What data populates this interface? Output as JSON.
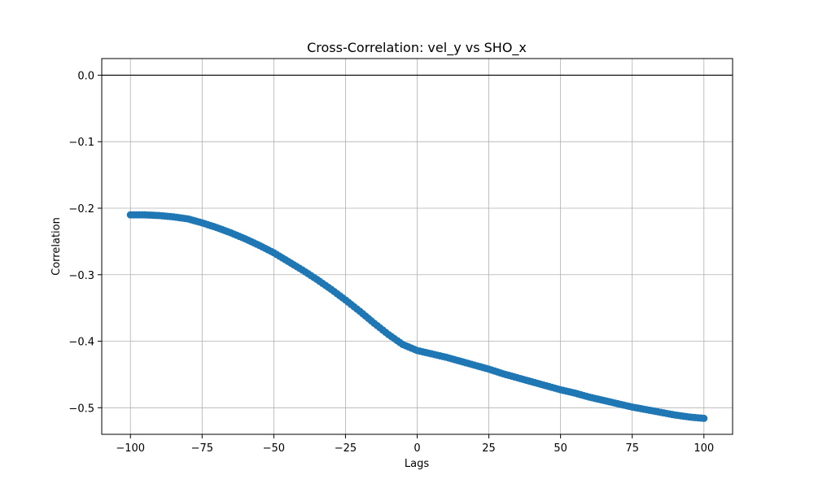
{
  "chart_data": {
    "type": "scatter",
    "title": "Cross-Correlation: vel_y vs SHO_x",
    "xlabel": "Lags",
    "ylabel": "Correlation",
    "xlim": [
      -110,
      110
    ],
    "ylim": [
      -0.54,
      0.025
    ],
    "xticks": [
      -100,
      -75,
      -50,
      -25,
      0,
      25,
      50,
      75,
      100
    ],
    "xtick_labels": [
      "−100",
      "−75",
      "−50",
      "−25",
      "0",
      "25",
      "50",
      "75",
      "100"
    ],
    "yticks": [
      0.0,
      -0.1,
      -0.2,
      -0.3,
      -0.4,
      -0.5
    ],
    "ytick_labels": [
      "0.0",
      "−0.1",
      "−0.2",
      "−0.3",
      "−0.4",
      "−0.5"
    ],
    "grid": true,
    "reference_line": {
      "y": 0.0,
      "color": "#000000"
    },
    "marker_color": "#1f77b4",
    "points": {
      "x": [
        -100,
        -95,
        -90,
        -85,
        -80,
        -75,
        -70,
        -65,
        -60,
        -55,
        -50,
        -45,
        -40,
        -35,
        -30,
        -25,
        -20,
        -15,
        -10,
        -5,
        0,
        5,
        10,
        15,
        20,
        25,
        30,
        35,
        40,
        45,
        50,
        55,
        60,
        65,
        70,
        75,
        80,
        85,
        90,
        95,
        100
      ],
      "y": [
        -0.21,
        -0.21,
        -0.211,
        -0.213,
        -0.216,
        -0.222,
        -0.229,
        -0.237,
        -0.246,
        -0.256,
        -0.267,
        -0.28,
        -0.293,
        -0.307,
        -0.322,
        -0.338,
        -0.355,
        -0.373,
        -0.39,
        -0.405,
        -0.414,
        -0.419,
        -0.424,
        -0.43,
        -0.436,
        -0.442,
        -0.449,
        -0.455,
        -0.461,
        -0.467,
        -0.473,
        -0.478,
        -0.484,
        -0.489,
        -0.494,
        -0.499,
        -0.503,
        -0.507,
        -0.511,
        -0.514,
        -0.516
      ]
    }
  }
}
